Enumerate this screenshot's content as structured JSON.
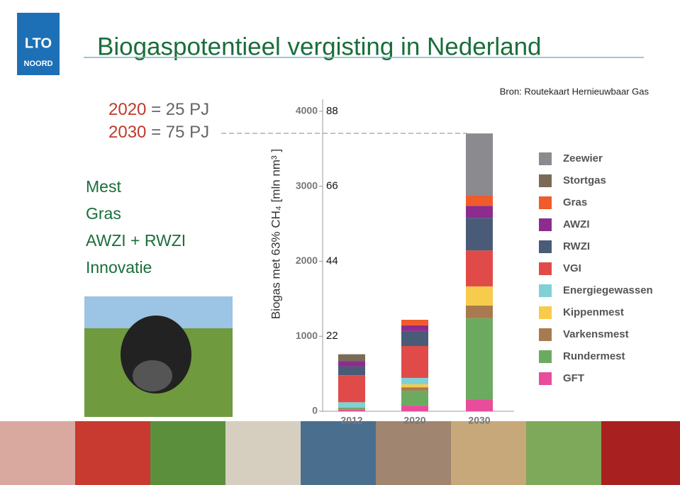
{
  "logo": {
    "top": "LTO",
    "bottom": "NOORD"
  },
  "title": "Biogaspotentieel vergisting in Nederland",
  "source": "Bron: Routekaart Hernieuwbaar Gas",
  "targets": [
    {
      "year": "2020",
      "text": "= 25 PJ"
    },
    {
      "year": "2030",
      "text": "= 75 PJ"
    }
  ],
  "topics": [
    "Mest",
    "Gras",
    "AWZI + RWZI",
    "Innovatie"
  ],
  "chart_data": {
    "type": "stacked_bar",
    "y_label": "Biogas met 63% CH₄   [mln nm³ ]",
    "categories": [
      "2012",
      "2020",
      "2030"
    ],
    "series": [
      {
        "name": "GFT",
        "color": "#e84d9b",
        "values": [
          20,
          75,
          160
        ]
      },
      {
        "name": "Rundermest",
        "color": "#6cab5f",
        "values": [
          30,
          200,
          1080
        ]
      },
      {
        "name": "Varkensmest",
        "color": "#a97a4f",
        "values": [
          0,
          45,
          170
        ]
      },
      {
        "name": "Kippenmest",
        "color": "#f7cb4c",
        "values": [
          0,
          40,
          255
        ]
      },
      {
        "name": "Energiegewassen",
        "color": "#80d0d6",
        "values": [
          70,
          85,
          0
        ]
      },
      {
        "name": "VGI",
        "color": "#e04b49",
        "values": [
          360,
          425,
          480
        ]
      },
      {
        "name": "RWZI",
        "color": "#4a5b78",
        "values": [
          120,
          200,
          435
        ]
      },
      {
        "name": "AWZI",
        "color": "#8e2b8f",
        "values": [
          70,
          75,
          160
        ]
      },
      {
        "name": "Gras",
        "color": "#ef5b2b",
        "values": [
          0,
          75,
          140
        ]
      },
      {
        "name": "Stortgas",
        "color": "#7a6a58",
        "values": [
          90,
          0,
          0
        ]
      },
      {
        "name": "Zeewier",
        "color": "#8a8a8f",
        "values": [
          0,
          0,
          825
        ]
      }
    ],
    "ylim": [
      0,
      4000
    ],
    "yticks": [
      0,
      1000,
      2000,
      3000,
      4000
    ],
    "y2lim": [
      0,
      88
    ],
    "y2ticks": [
      22,
      44,
      66,
      88
    ]
  }
}
